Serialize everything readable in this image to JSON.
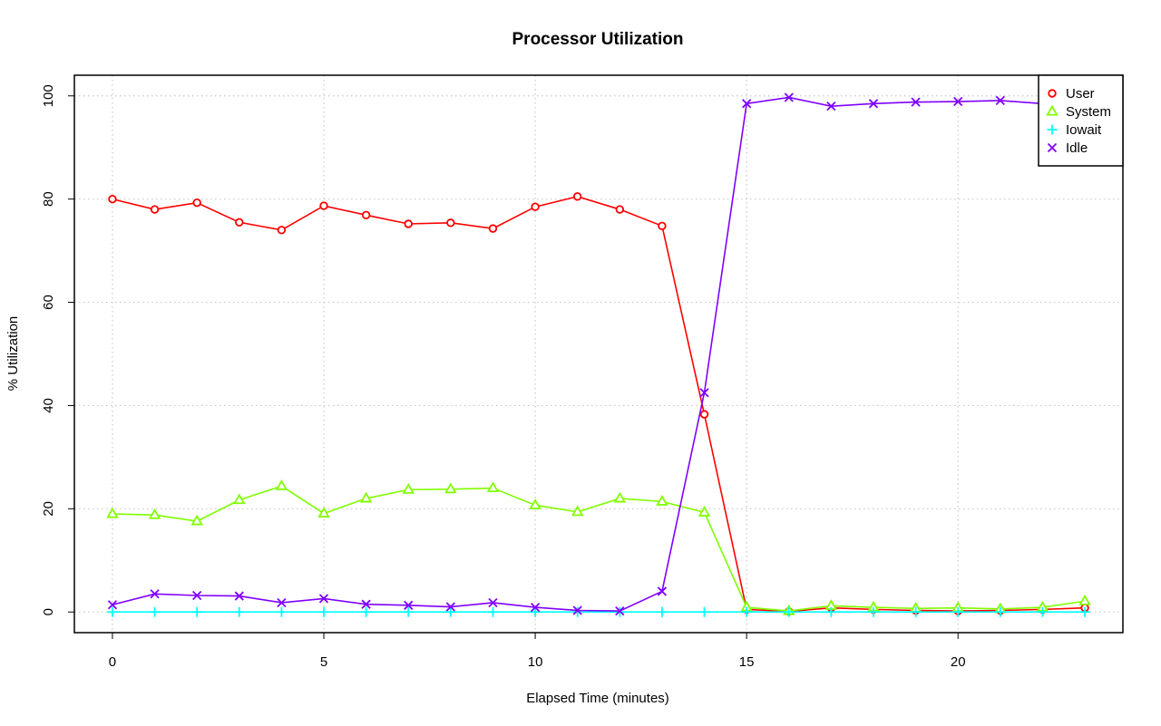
{
  "chart_data": {
    "type": "line",
    "title": "Processor Utilization",
    "xlabel": "Elapsed Time (minutes)",
    "ylabel": "% Utilization",
    "xlim": [
      -0.9,
      23.9
    ],
    "ylim": [
      -4,
      104
    ],
    "xticks": [
      0,
      5,
      10,
      15,
      20
    ],
    "yticks": [
      0,
      20,
      40,
      60,
      80,
      100
    ],
    "grid": true,
    "legend_position": "top-right",
    "x": [
      0,
      1,
      2,
      3,
      4,
      5,
      6,
      7,
      8,
      9,
      10,
      11,
      12,
      13,
      14,
      15,
      16,
      17,
      18,
      19,
      20,
      21,
      22,
      23
    ],
    "series": [
      {
        "name": "User",
        "color": "#ff0000",
        "marker": "circle",
        "values": [
          80,
          78,
          79.3,
          75.5,
          74,
          78.7,
          76.9,
          75.2,
          75.4,
          74.3,
          78.5,
          80.5,
          78,
          74.8,
          38.3,
          0.5,
          0.1,
          0.8,
          0.5,
          0.3,
          0.2,
          0.3,
          0.5,
          0.8
        ]
      },
      {
        "name": "System",
        "color": "#80ff00",
        "marker": "triangle",
        "values": [
          19,
          18.8,
          17.6,
          21.7,
          24.4,
          19.1,
          22,
          23.7,
          23.8,
          24,
          20.7,
          19.4,
          22,
          21.4,
          19.3,
          0.9,
          0.2,
          1.2,
          0.9,
          0.7,
          0.8,
          0.6,
          0.9,
          2.1
        ]
      },
      {
        "name": "Iowait",
        "color": "#00ffff",
        "marker": "plus",
        "values": [
          0,
          0,
          0,
          0,
          0,
          0,
          0,
          0,
          0,
          0,
          0,
          0,
          0,
          0,
          0,
          0,
          0,
          0,
          0,
          0,
          0,
          0,
          0,
          0
        ]
      },
      {
        "name": "Idle",
        "color": "#8000ff",
        "marker": "cross",
        "values": [
          1.4,
          3.5,
          3.2,
          3.1,
          1.8,
          2.6,
          1.5,
          1.3,
          1,
          1.8,
          0.9,
          0.3,
          0.2,
          4,
          42.5,
          98.5,
          99.7,
          98,
          98.5,
          98.8,
          98.9,
          99.1,
          98.5,
          97.2
        ]
      }
    ]
  }
}
